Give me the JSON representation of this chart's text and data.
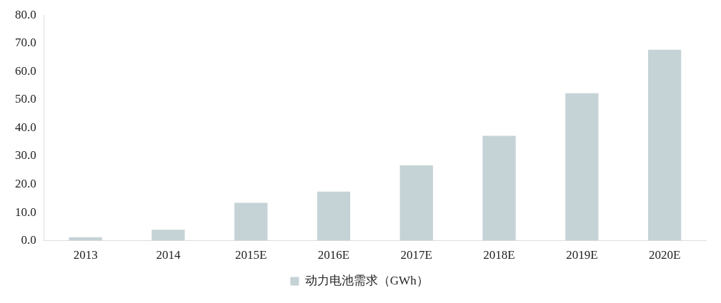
{
  "chart_data": {
    "type": "bar",
    "categories": [
      "2013",
      "2014",
      "2015E",
      "2016E",
      "2017E",
      "2018E",
      "2019E",
      "2020E"
    ],
    "series": [
      {
        "name": "动力电池需求（GWh）",
        "color": "#c5d3d6",
        "values": [
          1.2,
          3.9,
          13.4,
          17.4,
          26.7,
          37.2,
          52.3,
          67.7
        ]
      }
    ],
    "ylim": [
      0,
      80
    ],
    "yticks": [
      {
        "value": 0,
        "label": "0.0"
      },
      {
        "value": 10,
        "label": "10.0"
      },
      {
        "value": 20,
        "label": "20.0"
      },
      {
        "value": 30,
        "label": "30.0"
      },
      {
        "value": 40,
        "label": "40.0"
      },
      {
        "value": 50,
        "label": "50.0"
      },
      {
        "value": 60,
        "label": "60.0"
      },
      {
        "value": 70,
        "label": "70.0"
      },
      {
        "value": 80,
        "label": "80.0"
      }
    ],
    "grid": false,
    "legend": "bottom"
  }
}
